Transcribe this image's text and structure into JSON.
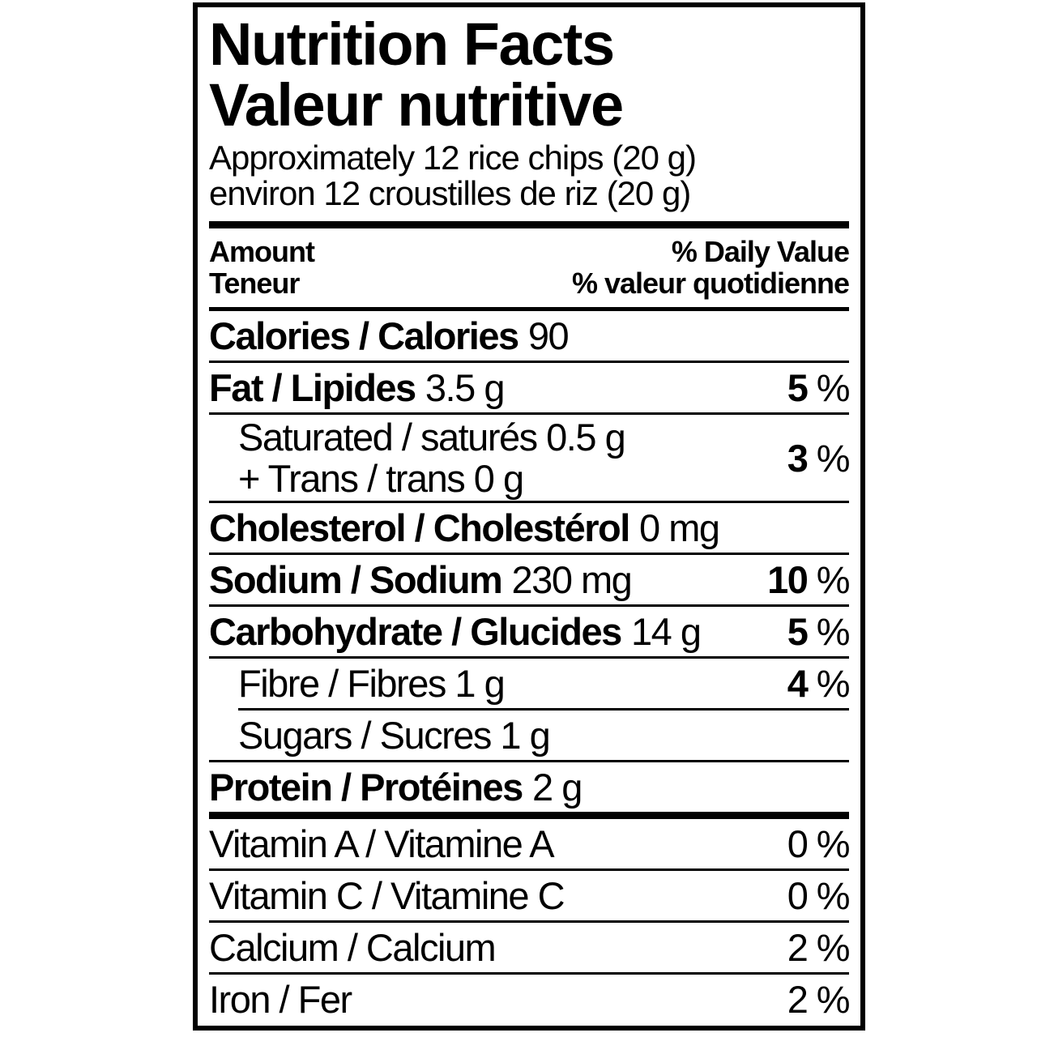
{
  "label": {
    "title_en": "Nutrition Facts",
    "title_fr": "Valeur nutritive",
    "serving_en": "Approximately 12 rice chips (20 g)",
    "serving_fr": "environ 12 croustilles de riz (20 g)",
    "header": {
      "amount_en": "Amount",
      "amount_fr": "Teneur",
      "daily_value_en": "% Daily Value",
      "daily_value_fr": "% valeur quotidienne"
    },
    "rows": {
      "calories": {
        "name": "Calories / Calories",
        "value": "90"
      },
      "fat": {
        "name": "Fat / Lipides",
        "value": "3.5 g",
        "dv_num": "5",
        "dv_sign": "%"
      },
      "saturated": {
        "line1": "Saturated / saturés 0.5 g",
        "line2": "+ Trans / trans 0 g",
        "dv_num": "3",
        "dv_sign": "%"
      },
      "cholesterol": {
        "name": "Cholesterol / Cholestérol",
        "value": "0 mg"
      },
      "sodium": {
        "name": "Sodium / Sodium",
        "value": "230 mg",
        "dv_num": "10",
        "dv_sign": "%"
      },
      "carbohydrate": {
        "name": "Carbohydrate / Glucides",
        "value": "14 g",
        "dv_num": "5",
        "dv_sign": "%"
      },
      "fibre": {
        "text": "Fibre / Fibres 1 g",
        "dv_num": "4",
        "dv_sign": "%"
      },
      "sugars": {
        "text": "Sugars / Sucres 1 g"
      },
      "protein": {
        "name": "Protein / Protéines",
        "value": "2 g"
      }
    },
    "micronutrients": {
      "vitamin_a": {
        "text": "Vitamin A / Vitamine A",
        "dv_num": "0",
        "dv_sign": "%"
      },
      "vitamin_c": {
        "text": "Vitamin C / Vitamine C",
        "dv_num": "0",
        "dv_sign": "%"
      },
      "calcium": {
        "text": "Calcium / Calcium",
        "dv_num": "2",
        "dv_sign": "%"
      },
      "iron": {
        "text": "Iron / Fer",
        "dv_num": "2",
        "dv_sign": "%"
      }
    },
    "colors": {
      "ink": "#000000",
      "background": "#ffffff"
    }
  }
}
